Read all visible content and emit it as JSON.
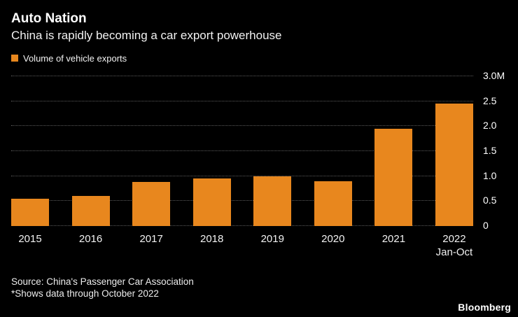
{
  "header": {
    "title": "Auto Nation",
    "subtitle": "China is rapidly becoming a car export powerhouse"
  },
  "legend": {
    "label": "Volume of vehicle exports",
    "color": "#E8871E"
  },
  "chart_data": {
    "type": "bar",
    "title": "Auto Nation",
    "categories": [
      "2015",
      "2016",
      "2017",
      "2018",
      "2019",
      "2020",
      "2021",
      "2022"
    ],
    "category_sub_labels": [
      "",
      "",
      "",
      "",
      "",
      "",
      "",
      "Jan-Oct"
    ],
    "values": [
      0.55,
      0.6,
      0.88,
      0.95,
      1.0,
      0.9,
      1.95,
      2.45
    ],
    "series_name": "Volume of vehicle exports",
    "xlabel": "",
    "ylabel": "",
    "ylim": [
      0,
      3.0
    ],
    "yticks": [
      0,
      0.5,
      1.0,
      1.5,
      2.0,
      2.5,
      3.0
    ],
    "ytick_labels": [
      "0",
      "0.5",
      "1.0",
      "1.5",
      "2.0",
      "2.5",
      "3.0M"
    ],
    "bar_color": "#E8871E",
    "grid": "horizontal-dotted",
    "legend_position": "top-left",
    "y_axis_side": "right"
  },
  "footer": {
    "source": "Source: China's Passenger Car Association",
    "note": "*Shows data through October 2022",
    "brand": "Bloomberg"
  }
}
